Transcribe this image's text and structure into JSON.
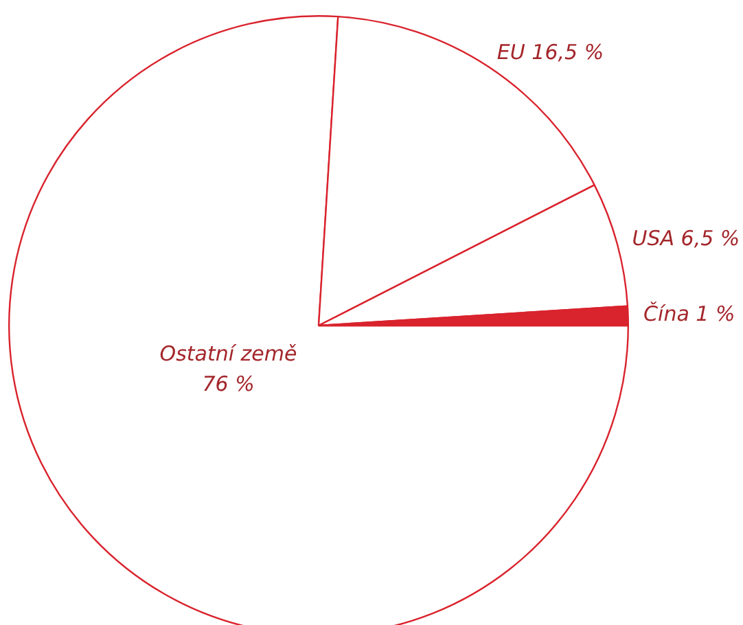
{
  "chart_data": {
    "type": "pie",
    "categories": [
      "Ostatní země",
      "EU",
      "USA",
      "Čína"
    ],
    "values": [
      76,
      16.5,
      6.5,
      1
    ],
    "value_labels": [
      "76 %",
      "16,5 %",
      "6,5 %",
      "1 %"
    ],
    "colors": [
      "#ffffff",
      "#ffffff",
      "#ffffff",
      "#d9232d"
    ],
    "legend": false
  }
}
